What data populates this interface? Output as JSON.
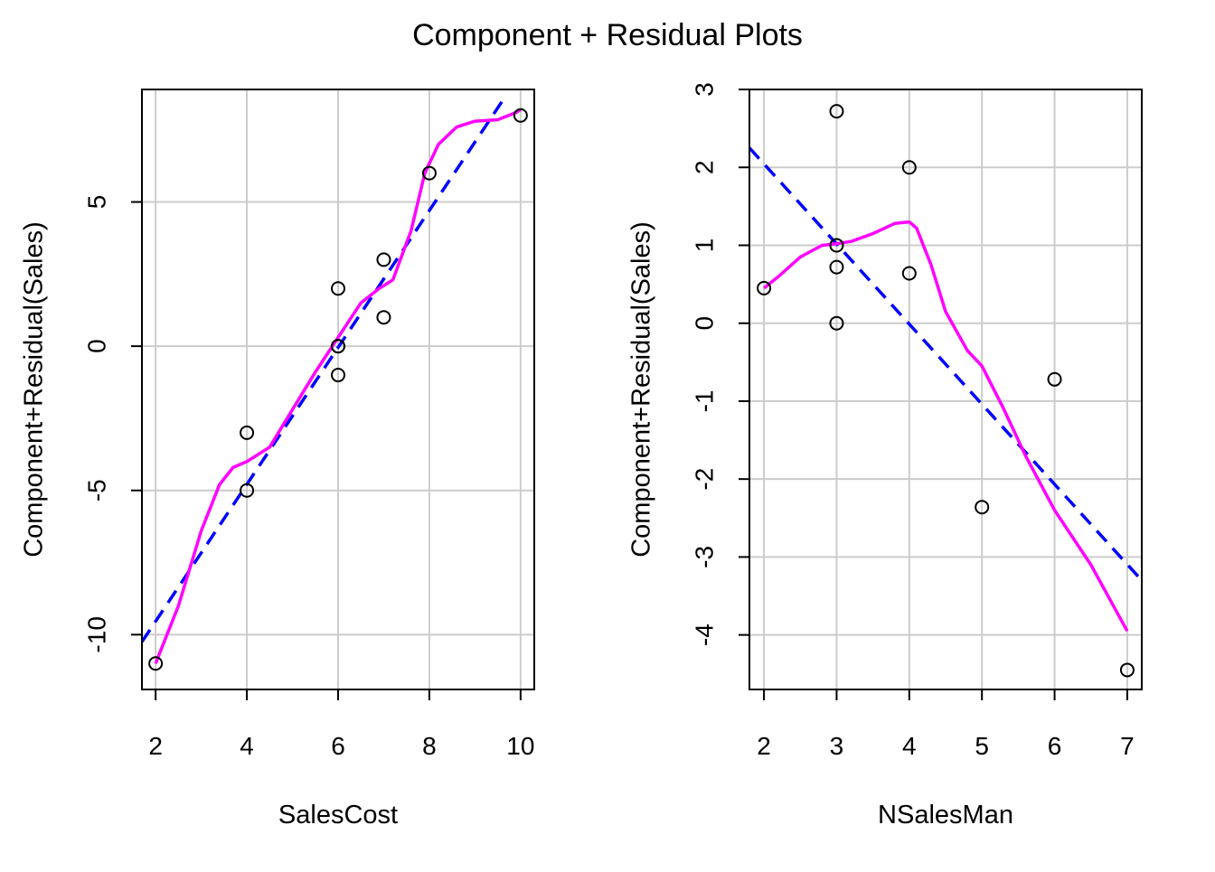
{
  "figure": {
    "title": "Component + Residual Plots"
  },
  "colors": {
    "grid": "#cccccc",
    "frame": "#000000",
    "points": "#000000",
    "fit_line": "#0000ff",
    "smooth_line": "#ff00ff",
    "background": "#ffffff"
  },
  "chart_data": [
    {
      "type": "scatter",
      "xlabel": "SalesCost",
      "ylabel": "Component+Residual(Sales)",
      "xlim": [
        1.7,
        10.3
      ],
      "ylim": [
        -11.9,
        8.9
      ],
      "xticks": [
        2,
        4,
        6,
        8,
        10
      ],
      "yticks": [
        -10,
        -5,
        0,
        5
      ],
      "grid": true,
      "points": {
        "x": [
          2,
          4,
          4,
          6,
          6,
          6,
          6,
          7,
          7,
          8,
          10
        ],
        "y": [
          -11,
          -3,
          -5,
          2,
          0,
          0,
          -1,
          3,
          1,
          6,
          8
        ]
      },
      "fit_line": {
        "style": "dashed",
        "x": [
          1.7,
          9.6
        ],
        "y": [
          -10.25,
          8.5
        ]
      },
      "smooth_line": {
        "style": "solid",
        "x": [
          2.0,
          2.5,
          3.0,
          3.4,
          3.7,
          4.0,
          4.5,
          5.0,
          5.5,
          6.0,
          6.5,
          6.9,
          7.2,
          7.6,
          7.9,
          8.2,
          8.6,
          9.0,
          9.5,
          9.9,
          10.0
        ],
        "y": [
          -11.0,
          -9.0,
          -6.4,
          -4.8,
          -4.2,
          -4.0,
          -3.5,
          -2.2,
          -0.9,
          0.3,
          1.5,
          2.0,
          2.3,
          4.0,
          6.0,
          7.0,
          7.6,
          7.8,
          7.85,
          8.1,
          8.2
        ]
      }
    },
    {
      "type": "scatter",
      "xlabel": "NSalesMan",
      "ylabel": "Component+Residual(Sales)",
      "xlim": [
        1.8,
        7.2
      ],
      "ylim": [
        -4.7,
        3.0
      ],
      "xticks": [
        2,
        3,
        4,
        5,
        6,
        7
      ],
      "yticks": [
        -4,
        -3,
        -2,
        -1,
        0,
        1,
        2,
        3
      ],
      "grid": true,
      "points": {
        "x": [
          2,
          3,
          3,
          3,
          3,
          4,
          4,
          5,
          6,
          7
        ],
        "y": [
          0.45,
          2.72,
          1.0,
          0.72,
          0.0,
          2.0,
          0.64,
          -2.36,
          -0.72,
          -4.45
        ]
      },
      "fit_line": {
        "style": "dashed",
        "x": [
          1.8,
          7.2
        ],
        "y": [
          2.25,
          -3.3
        ]
      },
      "smooth_line": {
        "style": "solid",
        "x": [
          2.0,
          2.2,
          2.5,
          2.8,
          3.0,
          3.2,
          3.5,
          3.8,
          4.0,
          4.1,
          4.3,
          4.5,
          4.8,
          5.0,
          5.3,
          5.6,
          6.0,
          6.5,
          7.0
        ],
        "y": [
          0.45,
          0.6,
          0.85,
          1.0,
          1.02,
          1.05,
          1.15,
          1.28,
          1.3,
          1.22,
          0.75,
          0.15,
          -0.35,
          -0.55,
          -1.1,
          -1.7,
          -2.4,
          -3.1,
          -3.95
        ]
      }
    }
  ]
}
